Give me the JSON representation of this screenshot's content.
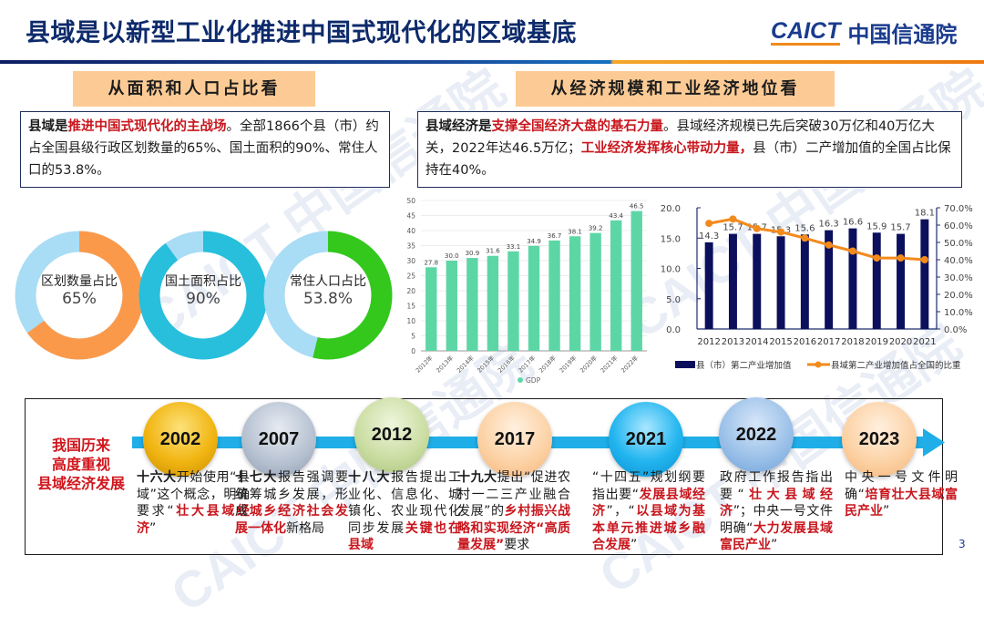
{
  "header": {
    "title": "县域是以新型工业化推进中国式现代化的区域基底",
    "logo_en": "CAICT",
    "logo_cn": "中国信通院"
  },
  "left_section": {
    "heading": "从面积和人口占比看",
    "text_parts": [
      {
        "t": "县域是",
        "style": "bold"
      },
      {
        "t": "推进中国式现代化的主战场",
        "style": "red"
      },
      {
        "t": "。全部1866个县（市）约占全国县级行政区划数量的65%、国土面积的90%、常住人口的53.8%。",
        "style": "plain"
      }
    ],
    "donuts": [
      {
        "label": "区划数量占比",
        "value_text": "65%",
        "value": 65,
        "color": "#fb994a",
        "rest_color": "#a9dcf5"
      },
      {
        "label": "国土面积占比",
        "value_text": "90%",
        "value": 90,
        "color": "#27bfdc",
        "rest_color": "#a9dcf5"
      },
      {
        "label": "常住人口占比",
        "value_text": "53.8%",
        "value": 53.8,
        "color": "#34c81c",
        "rest_color": "#a9dcf5"
      }
    ]
  },
  "right_section": {
    "heading": "从经济规模和工业经济地位看",
    "text_parts": [
      {
        "t": "县域经济是",
        "style": "bold"
      },
      {
        "t": "支撑全国经济大盘的基石力量",
        "style": "red"
      },
      {
        "t": "。县域经济规模已先后突破30万亿和40万亿大关，2022年达46.5万亿；",
        "style": "plain"
      },
      {
        "t": "工业经济发挥核心带动力量，",
        "style": "red"
      },
      {
        "t": "县（市）二产增加值的全国占比保持在40%。",
        "style": "plain"
      }
    ]
  },
  "chart_data": [
    {
      "type": "bar",
      "title": "",
      "categories": [
        "2012年",
        "2013年",
        "2014年",
        "2015年",
        "2016年",
        "2017年",
        "2018年",
        "2019年",
        "2020年",
        "2021年",
        "2022年"
      ],
      "series": [
        {
          "name": "GDP",
          "values": [
            27.8,
            30.0,
            30.9,
            31.6,
            33.1,
            34.9,
            36.7,
            38.1,
            39.2,
            43.4,
            46.5
          ],
          "color": "#5dd6a6"
        }
      ],
      "value_labels": [
        "27.8",
        "30.0",
        "30.9",
        "31.6",
        "33.1",
        "34.9",
        "36.7",
        "38.1",
        "39.2",
        "43.4",
        "46.5"
      ],
      "yticks": [
        0,
        5,
        10,
        15,
        20,
        25,
        30,
        35,
        40,
        45,
        50
      ],
      "ylim": [
        0,
        50
      ],
      "xlabel": "",
      "ylabel": "",
      "grid": true,
      "legend": "bottom"
    },
    {
      "type": "bar+line",
      "title": "",
      "categories": [
        "2012",
        "2013",
        "2014",
        "2015",
        "2016",
        "2017",
        "2018",
        "2019",
        "2020",
        "2021"
      ],
      "series": [
        {
          "name": "县（市）第二产业增加值",
          "type": "bar",
          "axis": "left",
          "values": [
            14.3,
            15.7,
            15.7,
            15.3,
            15.6,
            16.3,
            16.6,
            15.9,
            15.7,
            18.1
          ],
          "color": "#0b0f5c"
        },
        {
          "name": "县域第二产业增加值占全国的比重",
          "type": "line",
          "axis": "right",
          "values": [
            61.0,
            63.5,
            58.0,
            56.0,
            52.5,
            48.5,
            45.0,
            41.0,
            41.0,
            40.0
          ],
          "color": "#f38a1c"
        }
      ],
      "value_labels": [
        "14.3",
        "15.7",
        "15.7",
        "15.3",
        "15.6",
        "16.3",
        "16.6",
        "15.9",
        "15.7",
        "18.1"
      ],
      "yticks_left": [
        "0.0",
        "5.0",
        "10.0",
        "15.0",
        "20.0"
      ],
      "ylim_left": [
        0,
        20
      ],
      "yticks_right": [
        "0.0%",
        "10.0%",
        "20.0%",
        "30.0%",
        "40.0%",
        "50.0%",
        "60.0%",
        "70.0%"
      ],
      "ylim_right": [
        0,
        70
      ],
      "grid": false,
      "legend": "bottom"
    }
  ],
  "timeline": {
    "left_title_lines": [
      "我国历来",
      "高度重视",
      "县域经济发展"
    ],
    "milestones": [
      {
        "year": "2002",
        "color": "gold",
        "parts": [
          {
            "t": "十六大",
            "s": "bold"
          },
          {
            "t": "开始使用“县域”这个概念，明确要求“",
            "s": "plain"
          },
          {
            "t": "壮大县域经济",
            "s": "red"
          },
          {
            "t": "”",
            "s": "plain"
          }
        ]
      },
      {
        "year": "2007",
        "color": "gray",
        "parts": [
          {
            "t": "十七大",
            "s": "bold"
          },
          {
            "t": "报告强调要统筹城乡发展，形成",
            "s": "plain"
          },
          {
            "t": "城乡经济社会发展一体化",
            "s": "red"
          },
          {
            "t": "新格局",
            "s": "plain"
          }
        ]
      },
      {
        "year": "2012",
        "color": "green",
        "parts": [
          {
            "t": "十八大",
            "s": "bold"
          },
          {
            "t": "报告提出工业化、信息化、城镇化、农业现代化同步发展",
            "s": "plain"
          },
          {
            "t": "关键也在县域",
            "s": "red"
          }
        ]
      },
      {
        "year": "2017",
        "color": "peach",
        "parts": [
          {
            "t": "十九大",
            "s": "bold"
          },
          {
            "t": "提出“促进农村一二三产业融合发展”的",
            "s": "plain"
          },
          {
            "t": "乡村振兴战略和实现经济“高质量发展”",
            "s": "red"
          },
          {
            "t": "要求",
            "s": "plain"
          }
        ]
      },
      {
        "year": "2021",
        "color": "blue",
        "parts": [
          {
            "t": "“十四五”规划纲要指出要“",
            "s": "plain"
          },
          {
            "t": "发展县域经济",
            "s": "red"
          },
          {
            "t": "”，“",
            "s": "plain"
          },
          {
            "t": "以县域为基本单元推进城乡融合发展",
            "s": "red"
          },
          {
            "t": "”",
            "s": "plain"
          }
        ]
      },
      {
        "year": "2022",
        "color": "lightblue",
        "parts": [
          {
            "t": "政府工作报告指出要“",
            "s": "plain"
          },
          {
            "t": "壮大县域经济",
            "s": "red"
          },
          {
            "t": "”；中央一号文件明确“",
            "s": "plain"
          },
          {
            "t": "大力发展县域富民产业",
            "s": "red"
          },
          {
            "t": "”",
            "s": "plain"
          }
        ]
      },
      {
        "year": "2023",
        "color": "peach",
        "parts": [
          {
            "t": "中央一号文件明确“",
            "s": "plain"
          },
          {
            "t": "培育壮大县域富民产业",
            "s": "red"
          },
          {
            "t": "”",
            "s": "plain"
          }
        ]
      }
    ]
  },
  "page_number": "3",
  "watermark_text": "CAICT 中国信通院"
}
